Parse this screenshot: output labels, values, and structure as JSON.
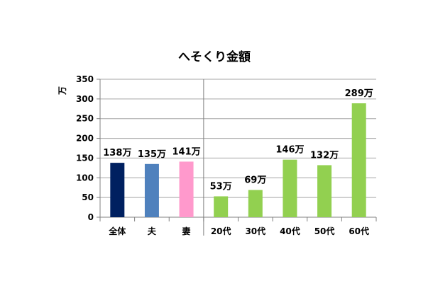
{
  "chart_data": {
    "type": "bar",
    "title": "へそくり金額",
    "ylabel": "万",
    "ylim": [
      0,
      350
    ],
    "yticks": [
      0,
      50,
      100,
      150,
      200,
      250,
      300,
      350
    ],
    "ytick_labels": [
      "0",
      "50",
      "100",
      "150",
      "200",
      "250",
      "300",
      "350"
    ],
    "categories": [
      "全体",
      "夫",
      "妻",
      "20代",
      "30代",
      "40代",
      "50代",
      "60代"
    ],
    "values": [
      138,
      135,
      141,
      53,
      69,
      146,
      132,
      289
    ],
    "data_labels": [
      "138万",
      "135万",
      "141万",
      "53万",
      "69万",
      "146万",
      "132万",
      "289万"
    ],
    "colors": [
      "#002060",
      "#4f81bd",
      "#ff99cc",
      "#92d050",
      "#92d050",
      "#92d050",
      "#92d050",
      "#92d050"
    ],
    "gridlines": true,
    "legend": "none",
    "separator_after_category_index": 2
  }
}
